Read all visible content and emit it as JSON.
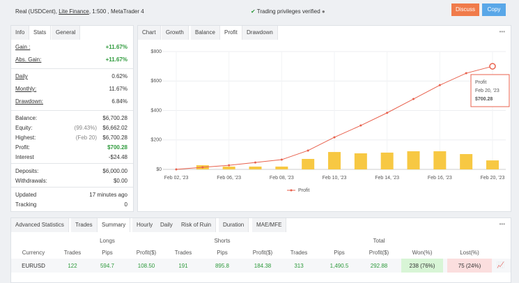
{
  "header": {
    "account": "Real (USDCent),",
    "broker": "Lite Finance",
    "details": ", 1:500 , MetaTrader 4",
    "verified": "Trading privileges verified",
    "buttons": [
      "Discuss",
      "Copy"
    ]
  },
  "stats": {
    "tabs": [
      "Info",
      "Stats",
      "General"
    ],
    "groups": [
      [
        {
          "label": "Gain :",
          "value": "+11.67%",
          "color": "#2e9a3c"
        },
        {
          "label": "Abs. Gain:",
          "value": "+11.67%",
          "color": "#2e9a3c"
        }
      ],
      [
        {
          "label": "Daily",
          "value": "0.62%"
        },
        {
          "label": "Monthly:",
          "value": "11.67%"
        },
        {
          "label": "Drawdown:",
          "value": "6.84%"
        }
      ],
      [
        {
          "label": "Balance:",
          "value": "$6,700.28"
        },
        {
          "label": "Equity:",
          "note": "(99.43%)",
          "value": "$6,662.02"
        },
        {
          "label": "Highest:",
          "note": "(Feb 20)",
          "value": "$6,700.28"
        },
        {
          "label": "Profit:",
          "value": "$700.28",
          "color": "#2e9a3c"
        },
        {
          "label": "Interest",
          "value": "-$24.48"
        }
      ],
      [
        {
          "label": "Deposits:",
          "value": "$6,000.00"
        },
        {
          "label": "Withdrawals:",
          "value": "$0.00"
        }
      ],
      [
        {
          "label": "Updated",
          "value": "17 minutes ago"
        },
        {
          "label": "Tracking",
          "value": "0"
        }
      ]
    ]
  },
  "chart_tabs": [
    "Chart",
    "Growth",
    "Balance",
    "Profit",
    "Drawdown"
  ],
  "chart_data": {
    "type": "line",
    "categories": [
      "Feb 02, '23",
      null,
      "Feb 06, '23",
      null,
      "Feb 08, '23",
      null,
      "Feb 10, '23",
      null,
      "Feb 14, '23",
      null,
      "Feb 16, '23",
      null,
      "Feb 20, '23"
    ],
    "series": [
      {
        "name": "Profit",
        "color": "#e8604c",
        "values": [
          0,
          14,
          28,
          47,
          66,
          128,
          218,
          298,
          384,
          478,
          572,
          653,
          700.28
        ]
      }
    ],
    "bar_values": [
      null,
      28,
      19,
      19,
      19,
      71,
      118,
      109,
      114,
      123,
      123,
      104,
      61
    ],
    "bar_color": "#f7c843",
    "ylim": [
      0,
      800
    ],
    "yticks": [
      {
        "value": 0,
        "label": "$0"
      },
      {
        "value": 200,
        "label": "$200"
      },
      {
        "value": 400,
        "label": "$400"
      },
      {
        "value": 600,
        "label": "$600"
      },
      {
        "value": 800,
        "label": "$800"
      }
    ],
    "grid": true,
    "legend": "bottom",
    "tooltip": {
      "name": "Profit",
      "date": "Feb 20, '23",
      "value": "$700.28"
    }
  },
  "bottom": {
    "tabs": [
      "Advanced Statistics",
      "Trades",
      "Summary",
      "Hourly",
      "Daily",
      "Risk of Ruin",
      "Duration",
      "MAE/MFE"
    ],
    "table": {
      "groups": [
        "Longs",
        "Shorts",
        "Total"
      ],
      "columns": [
        "Currency",
        "Trades",
        "Pips",
        "Profit($)",
        "Trades",
        "Pips",
        "Profit($)",
        "Trades",
        "Pips",
        "Profit($)",
        "Won(%)",
        "Lost(%)"
      ],
      "rows": [
        [
          "EURUSD",
          "122",
          "594.7",
          "108.50",
          "191",
          "895.8",
          "184.38",
          "313",
          "1,490.5",
          "292.88",
          "238 (76%)",
          "75 (24%)"
        ]
      ]
    }
  }
}
